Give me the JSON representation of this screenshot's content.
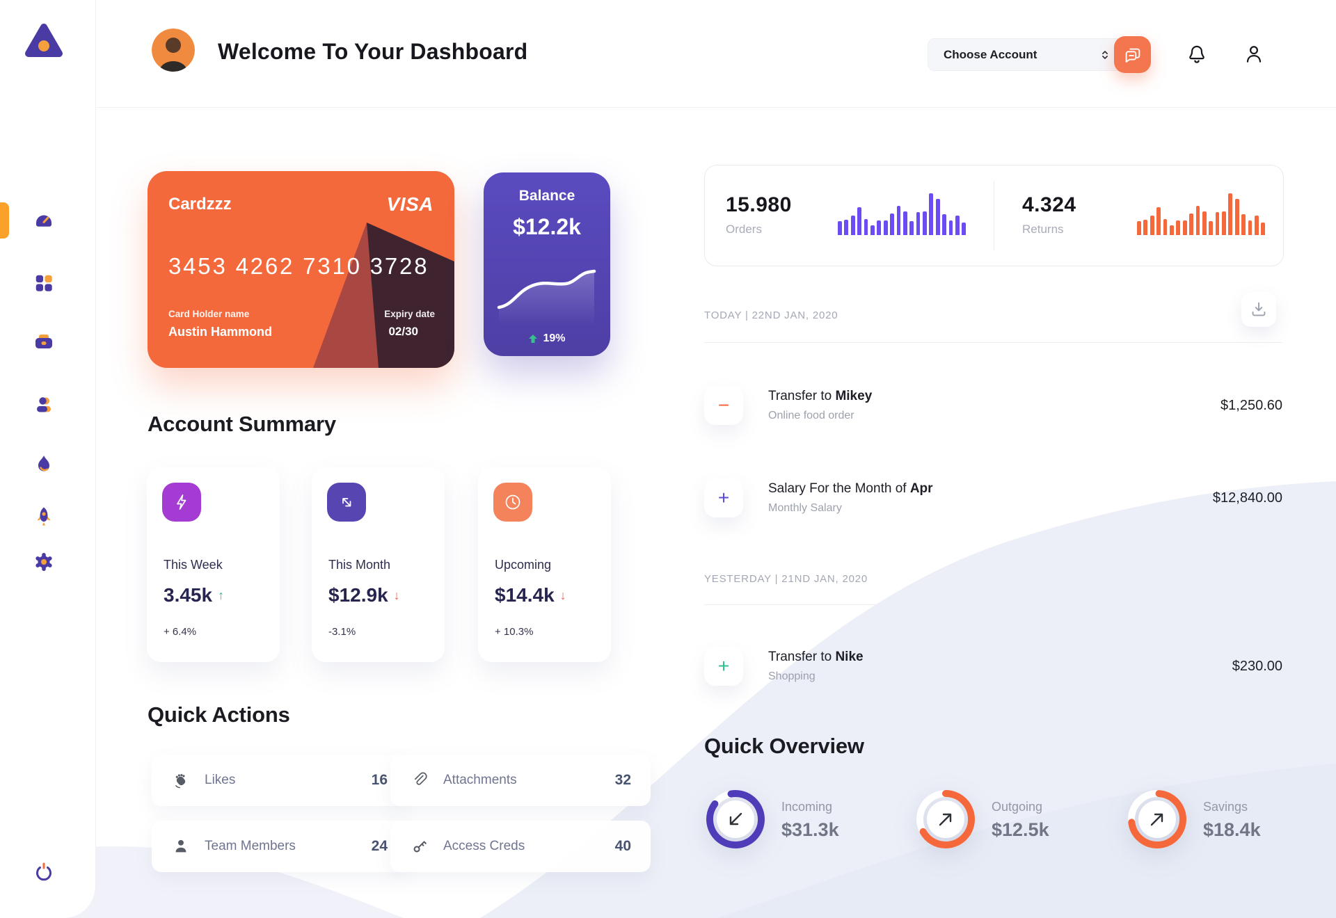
{
  "header": {
    "title": "Welcome To Your Dashboard",
    "account_select_label": "Choose Account"
  },
  "bank_card": {
    "name": "Cardzzz",
    "brand": "VISA",
    "number": "3453 4262 7310 3728",
    "holder_label": "Card Holder name",
    "holder_name": "Austin Hammond",
    "expiry_label": "Expiry date",
    "expiry": "02/30"
  },
  "balance": {
    "label": "Balance",
    "value": "$12.2k",
    "change": "19%"
  },
  "summary": {
    "heading": "Account Summary",
    "cards": [
      {
        "label": "This Week",
        "value": "3.45k",
        "arrow": "↑",
        "arrow_color": "#2FBE8F",
        "delta": "+ 6.4%",
        "icon_bg": "#A43BD2"
      },
      {
        "label": "This Month",
        "value": "$12.9k",
        "arrow": "↓",
        "arrow_color": "#E5655E",
        "delta": "-3.1%",
        "icon_bg": "#5746B2"
      },
      {
        "label": "Upcoming",
        "value": "$14.4k",
        "arrow": "↓",
        "arrow_color": "#E5655E",
        "delta": "+ 10.3%",
        "icon_bg": "#F4835C"
      }
    ]
  },
  "quick_actions": {
    "heading": "Quick Actions",
    "items": [
      {
        "label": "Likes",
        "count": "16"
      },
      {
        "label": "Attachments",
        "count": "32"
      },
      {
        "label": "Team Members",
        "count": "24"
      },
      {
        "label": "Access Creds",
        "count": "40"
      }
    ]
  },
  "stats": {
    "orders": {
      "value": "15.980",
      "label": "Orders",
      "color": "#6C4BF2",
      "bars": [
        34,
        37,
        47,
        66,
        38,
        23,
        35,
        35,
        52,
        70,
        56,
        33,
        55,
        56,
        100,
        86,
        50,
        35,
        46,
        30
      ]
    },
    "returns": {
      "value": "4.324",
      "label": "Returns",
      "color": "#F4683B",
      "bars": [
        34,
        37,
        47,
        66,
        38,
        23,
        35,
        35,
        52,
        70,
        56,
        33,
        55,
        56,
        100,
        86,
        50,
        35,
        46,
        30
      ]
    }
  },
  "transactions": {
    "today_heading": "TODAY | 22ND JAN, 2020",
    "yesterday_heading": "YESTERDAY | 21ND JAN, 2020",
    "rows": [
      {
        "sign": "−",
        "sign_color": "#F4683B",
        "title": "Transfer to ",
        "title_bold": "Mikey",
        "subtitle": "Online food order",
        "amount": "$1,250.60"
      },
      {
        "sign": "+",
        "sign_color": "#5B4BD4",
        "title": "Salary For the Month of ",
        "title_bold": "Apr",
        "subtitle": "Monthly Salary",
        "amount": "$12,840.00"
      },
      {
        "sign": "+",
        "sign_color": "#2FBE8F",
        "title": "Transfer to ",
        "title_bold": "Nike",
        "subtitle": "Shopping",
        "amount": "$230.00"
      }
    ]
  },
  "overview": {
    "heading": "Quick Overview",
    "items": [
      {
        "label": "Incoming",
        "value": "$31.3k",
        "percent": 88,
        "color": "#4F3CB8",
        "rotate": -100
      },
      {
        "label": "Outgoing",
        "value": "$12.5k",
        "percent": 67,
        "color": "#F4683B",
        "rotate": -90
      },
      {
        "label": "Savings",
        "value": "$18.4k",
        "percent": 72,
        "color": "#F4683B",
        "rotate": -86
      }
    ]
  }
}
